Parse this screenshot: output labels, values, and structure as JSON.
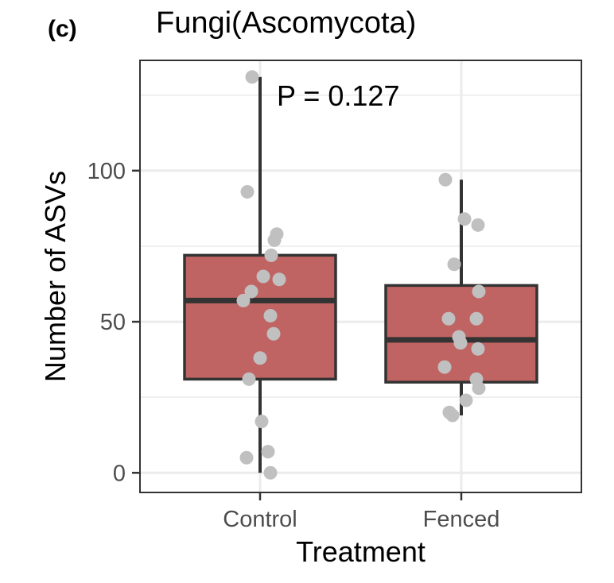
{
  "panel_tag": "(c)",
  "chart_data": {
    "type": "box",
    "title": "Fungi(Ascomycota)",
    "xlabel": "Treatment",
    "ylabel": "Number of ASVs",
    "annotation": "P = 0.127",
    "categories": [
      "Control",
      "Fenced"
    ],
    "y_ticks": [
      0,
      50,
      100
    ],
    "ylim": [
      -6.5,
      136.5
    ],
    "grid": true,
    "boxes": [
      {
        "category": "Control",
        "min": 0,
        "q1": 31,
        "median": 57,
        "q3": 72,
        "max": 131
      },
      {
        "category": "Fenced",
        "min": 19,
        "q1": 30,
        "median": 44,
        "q3": 62,
        "max": 97
      }
    ],
    "points": {
      "Control": [
        131,
        93,
        79,
        77,
        72,
        65,
        64,
        60,
        57,
        52,
        46,
        38,
        31,
        17,
        7,
        5,
        0
      ],
      "Fenced": [
        97,
        84,
        82,
        69,
        60,
        51,
        51,
        45,
        43,
        41,
        35,
        31,
        28,
        24,
        20,
        19
      ]
    },
    "colors": {
      "box_fill": "#c06463",
      "box_outline": "#333333",
      "points": "#c0c0c0",
      "grid": "#ebebeb",
      "panel_border": "#333333"
    }
  }
}
